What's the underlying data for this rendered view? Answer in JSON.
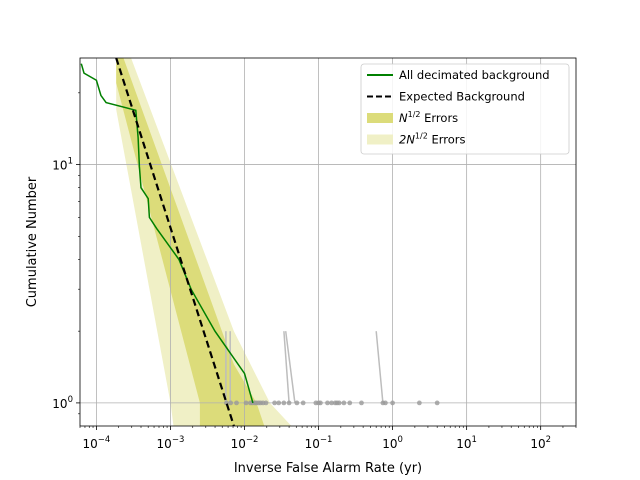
{
  "chart_data": {
    "type": "line",
    "title": "",
    "xlabel": "Inverse False Alarm Rate (yr)",
    "ylabel": "Cumulative Number",
    "xscale": "log",
    "yscale": "log",
    "xlim": [
      6e-05,
      300
    ],
    "ylim": [
      0.8,
      28
    ],
    "grid": true,
    "legend_position": "top-right",
    "x_ticks": [
      {
        "value": 0.0001,
        "base": "10",
        "exp": "−4"
      },
      {
        "value": 0.001,
        "base": "10",
        "exp": "−3"
      },
      {
        "value": 0.01,
        "base": "10",
        "exp": "−2"
      },
      {
        "value": 0.1,
        "base": "10",
        "exp": "−1"
      },
      {
        "value": 1,
        "base": "10",
        "exp": "0"
      },
      {
        "value": 10,
        "base": "10",
        "exp": "1"
      },
      {
        "value": 100,
        "base": "10",
        "exp": "2"
      }
    ],
    "y_ticks": [
      {
        "value": 1,
        "base": "10",
        "exp": "0"
      },
      {
        "value": 10,
        "base": "10",
        "exp": "1"
      }
    ],
    "legend": [
      {
        "label": "All decimated background",
        "label_sup": "",
        "label_after": "",
        "style": "line",
        "color": "#008000"
      },
      {
        "label": "Expected Background",
        "label_sup": "",
        "label_after": "",
        "style": "dashed",
        "color": "#000000"
      },
      {
        "label": "N",
        "label_sup": "1/2",
        "label_after": " Errors",
        "style": "patch",
        "color": "#dcdc7a"
      },
      {
        "label": "2N",
        "label_sup": "1/2",
        "label_after": " Errors",
        "style": "patch",
        "color": "#f0f0c6"
      }
    ],
    "series": [
      {
        "name": "All decimated background",
        "kind": "line",
        "color": "#008000",
        "points": [
          [
            6.25e-05,
            26.5
          ],
          [
            6.8e-05,
            24.2
          ],
          [
            0.0001,
            22.6
          ],
          [
            0.000115,
            19.5
          ],
          [
            0.000135,
            18.2
          ],
          [
            0.00034,
            16.9
          ],
          [
            0.000365,
            13.0
          ],
          [
            0.00038,
            9.8
          ],
          [
            0.0004,
            8.0
          ],
          [
            0.0005,
            7.2
          ],
          [
            0.00052,
            6.0
          ],
          [
            0.00065,
            5.4
          ],
          [
            0.0013,
            4.0
          ],
          [
            0.0019,
            3.0
          ],
          [
            0.004,
            2.0
          ],
          [
            0.01,
            1.33
          ],
          [
            0.013,
            1.0
          ]
        ]
      },
      {
        "name": "Expected Background",
        "kind": "dashed",
        "color": "#000000",
        "points": [
          [
            0.000185,
            28
          ],
          [
            0.0072,
            0.8
          ]
        ]
      }
    ],
    "bands": [
      {
        "name": "2N^1/2 Errors",
        "color": "#f0f0c6",
        "upper": [
          [
            0.000185,
            41
          ],
          [
            0.0072,
            2.0
          ],
          [
            0.022,
            1.0
          ],
          [
            0.043,
            0.8
          ]
        ],
        "lower": [
          [
            0.000185,
            17
          ],
          [
            0.001,
            1.0
          ],
          [
            0.0011,
            0.8
          ]
        ]
      },
      {
        "name": "N^1/2 Errors",
        "color": "#dcdc7a",
        "upper": [
          [
            0.000185,
            34
          ],
          [
            0.0072,
            1.45
          ],
          [
            0.0145,
            1.0
          ],
          [
            0.0185,
            0.8
          ]
        ],
        "lower": [
          [
            0.000185,
            22
          ],
          [
            0.0025,
            1.0
          ],
          [
            0.0025,
            0.8
          ]
        ]
      }
    ],
    "gray_points": [
      0.0057,
      0.0065,
      0.0078,
      0.0105,
      0.012,
      0.0128,
      0.0138,
      0.0145,
      0.0155,
      0.0165,
      0.0178,
      0.0195,
      0.0255,
      0.029,
      0.034,
      0.04,
      0.051,
      0.062,
      0.092,
      0.1,
      0.106,
      0.132,
      0.15,
      0.168,
      0.178,
      0.19,
      0.22,
      0.264,
      0.38,
      0.74,
      0.8,
      1.0,
      2.3,
      4.0
    ],
    "gray_segments": [
      [
        [
          0.0056,
          2.0
        ],
        [
          0.0056,
          1.0
        ]
      ],
      [
        [
          0.0064,
          2.0
        ],
        [
          0.0064,
          1.0
        ]
      ],
      [
        [
          0.034,
          2.0
        ],
        [
          0.04,
          1.0
        ]
      ],
      [
        [
          0.036,
          2.0
        ],
        [
          0.048,
          1.0
        ]
      ],
      [
        [
          0.6,
          2.0
        ],
        [
          0.74,
          1.0
        ]
      ]
    ]
  }
}
